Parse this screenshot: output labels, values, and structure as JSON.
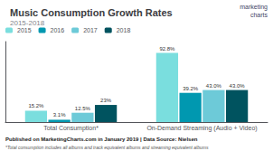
{
  "chart_data": {
    "type": "bar",
    "title": "Music Consumption Growth Rates",
    "subtitle": "2015-2018",
    "categories": [
      "Total Consumption*",
      "On-Demand Streaming (Audio + Video)"
    ],
    "series": [
      {
        "name": "2015",
        "color": "#7adede",
        "values": [
          15.2,
          92.8
        ],
        "value_labels": [
          "15.2%",
          "92.8%"
        ]
      },
      {
        "name": "2016",
        "color": "#0098b0",
        "values": [
          3.1,
          39.2
        ],
        "value_labels": [
          "3.1%",
          "39.2%"
        ]
      },
      {
        "name": "2017",
        "color": "#6dcad8",
        "values": [
          12.5,
          43.0
        ],
        "value_labels": [
          "12.5%",
          "43.0%"
        ]
      },
      {
        "name": "2018",
        "color": "#00535f",
        "values": [
          23,
          43.0
        ],
        "value_labels": [
          "23%",
          "43.0%"
        ]
      }
    ],
    "ylim": [
      0,
      108
    ],
    "tick_labels": "x",
    "grid": false,
    "legend": "upper left",
    "data_labels": true,
    "annotations": [
      "Published on MarketingCharts.com in January 2019 | Data Source: Nielsen",
      "*Total consumption includes all albums and track equivalent albums and streaming equivalent albums",
      "marketing",
      "charts"
    ]
  }
}
